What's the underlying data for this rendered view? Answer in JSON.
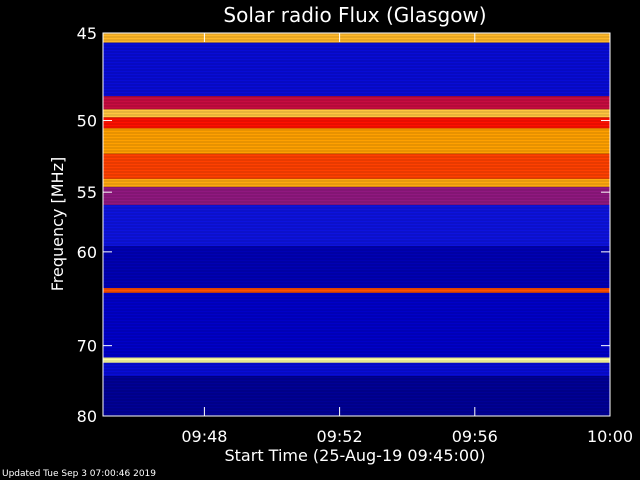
{
  "chart_data": {
    "type": "heatmap",
    "title": "Solar radio Flux (Glasgow)",
    "xlabel": "Start Time (25-Aug-19 09:45:00)",
    "ylabel": "Frequency [MHz]",
    "x_start": "09:45",
    "x_end": "10:00",
    "xlim_minutes": [
      0,
      15
    ],
    "ylim": [
      45,
      80
    ],
    "x_ticks": [
      "09:48",
      "09:52",
      "09:56",
      "10:00"
    ],
    "x_tick_minutes": [
      3,
      7,
      11,
      15
    ],
    "y_ticks": [
      45,
      50,
      55,
      60,
      70,
      80
    ],
    "colormap": [
      "#000000",
      "#0000c8",
      "#2030ff",
      "#ff0000",
      "#ffa000",
      "#ffffa0"
    ],
    "bands": [
      {
        "f0": 45.0,
        "f1": 45.5,
        "level": 0.85
      },
      {
        "f0": 45.5,
        "f1": 48.5,
        "level": 0.25
      },
      {
        "f0": 48.5,
        "f1": 49.3,
        "level": 0.55
      },
      {
        "f0": 49.3,
        "f1": 49.8,
        "level": 0.88
      },
      {
        "f0": 49.8,
        "f1": 50.5,
        "level": 0.62
      },
      {
        "f0": 50.5,
        "f1": 52.2,
        "level": 0.8
      },
      {
        "f0": 52.2,
        "f1": 54.0,
        "level": 0.68
      },
      {
        "f0": 54.0,
        "f1": 54.6,
        "level": 0.82
      },
      {
        "f0": 54.6,
        "f1": 56.0,
        "level": 0.5
      },
      {
        "f0": 56.0,
        "f1": 59.5,
        "level": 0.28
      },
      {
        "f0": 59.5,
        "f1": 63.5,
        "level": 0.18
      },
      {
        "f0": 63.5,
        "f1": 64.0,
        "level": 0.7
      },
      {
        "f0": 64.0,
        "f1": 71.5,
        "level": 0.2
      },
      {
        "f0": 71.5,
        "f1": 72.2,
        "level": 1.0
      },
      {
        "f0": 72.2,
        "f1": 74.0,
        "level": 0.25
      },
      {
        "f0": 74.0,
        "f1": 80.0,
        "level": 0.15
      }
    ]
  },
  "footer": {
    "updated": "Updated Tue Sep  3 07:00:46 2019"
  }
}
